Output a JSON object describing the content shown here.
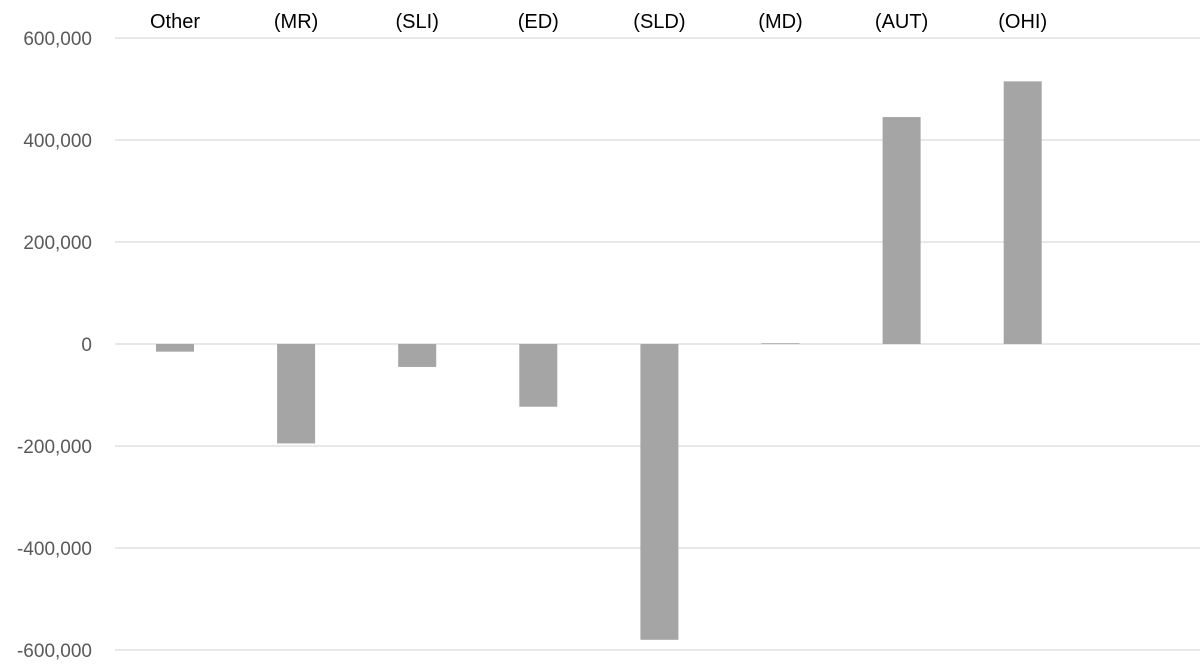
{
  "chart_data": {
    "type": "bar",
    "categories": [
      "Other",
      "(MR)",
      "(SLI)",
      "(ED)",
      "(SLD)",
      "(MD)",
      "(AUT)",
      "(OHI)"
    ],
    "series": [
      {
        "values": [
          -15000,
          -195000,
          -45000,
          -123000,
          -580000,
          1500,
          445000,
          515000
        ]
      }
    ],
    "ylim": [
      -600000,
      600000
    ],
    "yticks": [
      600000,
      400000,
      200000,
      0,
      -200000,
      -400000,
      -600000
    ],
    "ytick_labels": [
      "600,000",
      "400,000",
      "200,000",
      "0",
      "-200,000",
      "-400,000",
      "-600,000"
    ],
    "title": "",
    "xlabel": "",
    "ylabel": "",
    "category_axis_position": "top",
    "grid": true,
    "legend": false,
    "colors": {
      "bar": "#a5a5a5",
      "grid": "#d9d9d9",
      "tick_text": "#595959",
      "category_text": "#000000"
    }
  }
}
